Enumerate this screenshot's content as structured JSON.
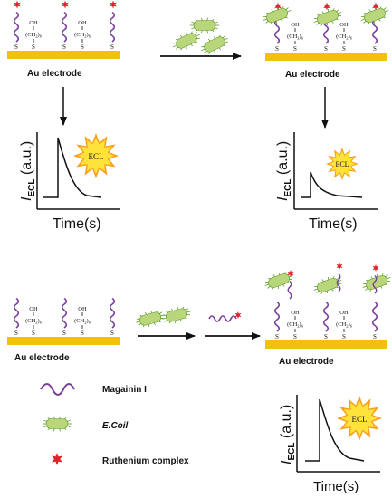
{
  "electrode_label": "Au electrode",
  "chem": {
    "hydroxyl": "OH",
    "chain": "(CH",
    "chain_sub": "2",
    "chain_close": ")",
    "chain_n": "6",
    "sulfur": "S"
  },
  "plot": {
    "y_italic": "I",
    "y_sub": "ECL",
    "y_unit": " (a.u.)",
    "x_label": "Time(s)",
    "burst_label": "ECL"
  },
  "legend": {
    "peptide": "Magainin I",
    "bacteria": "E.Coil",
    "tag": "Ruthenium complex"
  },
  "colors": {
    "electrode": "#f2c10f",
    "peptide": "#7a3f9e",
    "bacteria_fill": "#b9d77a",
    "bacteria_spike": "#5f9a2a",
    "tag": "#e0242b",
    "burst_outer": "#ffe23a",
    "burst_inner": "#f9a01b",
    "arrow": "#111111"
  },
  "icons": [
    "peptide-icon",
    "bacteria-icon",
    "ruthenium-star-icon",
    "ecl-burst-icon"
  ]
}
